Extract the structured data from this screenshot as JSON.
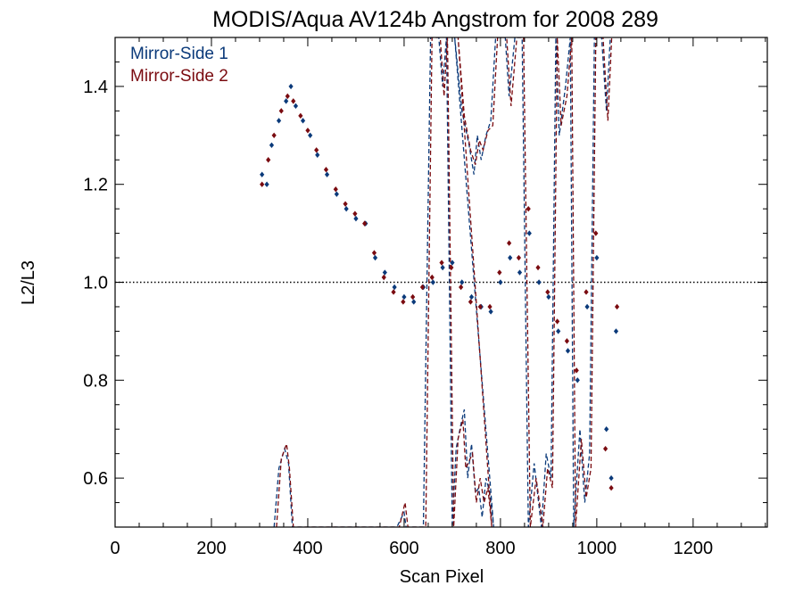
{
  "chart_data": {
    "type": "scatter",
    "title": "MODIS/Aqua AV124b Angstrom for 2008 289",
    "xlabel": "Scan Pixel",
    "ylabel": "L2/L3",
    "xlim": [
      0,
      1354
    ],
    "ylim": [
      0.5,
      1.5
    ],
    "xticks": [
      "0",
      "200",
      "400",
      "600",
      "800",
      "1000",
      "1200"
    ],
    "xtick_values": [
      0,
      200,
      400,
      600,
      800,
      1000,
      1200
    ],
    "yticks": [
      "0.6",
      "0.8",
      "1.0",
      "1.2",
      "1.4"
    ],
    "ytick_values": [
      0.6,
      0.8,
      1.0,
      1.2,
      1.4
    ],
    "reference_line": {
      "y": 1.0,
      "style": "dotted",
      "color": "#000000"
    },
    "legend_position": "top-left",
    "series": [
      {
        "name": "Mirror-Side 1",
        "color": "#0b3a7a",
        "points": [
          [
            305,
            1.22
          ],
          [
            315,
            1.2
          ],
          [
            325,
            1.28
          ],
          [
            340,
            1.33
          ],
          [
            355,
            1.37
          ],
          [
            365,
            1.4
          ],
          [
            375,
            1.36
          ],
          [
            390,
            1.33
          ],
          [
            405,
            1.3
          ],
          [
            420,
            1.26
          ],
          [
            440,
            1.22
          ],
          [
            460,
            1.18
          ],
          [
            480,
            1.15
          ],
          [
            500,
            1.13
          ],
          [
            520,
            1.12
          ],
          [
            540,
            1.05
          ],
          [
            560,
            1.02
          ],
          [
            580,
            0.99
          ],
          [
            600,
            0.97
          ],
          [
            620,
            0.96
          ],
          [
            640,
            0.99
          ],
          [
            660,
            1.0
          ],
          [
            680,
            1.03
          ],
          [
            700,
            1.04
          ],
          [
            720,
            1.0
          ],
          [
            740,
            0.97
          ],
          [
            760,
            0.95
          ],
          [
            780,
            0.94
          ],
          [
            800,
            1.0
          ],
          [
            820,
            1.05
          ],
          [
            840,
            1.02
          ],
          [
            860,
            1.1
          ],
          [
            880,
            1.0
          ],
          [
            900,
            0.97
          ],
          [
            920,
            0.9
          ],
          [
            940,
            0.86
          ],
          [
            960,
            0.8
          ],
          [
            980,
            0.95
          ],
          [
            1000,
            1.05
          ],
          [
            1020,
            0.7
          ],
          [
            1030,
            0.6
          ],
          [
            1040,
            0.9
          ]
        ],
        "line": [
          [
            330,
            0.5
          ],
          [
            340,
            0.62
          ],
          [
            352,
            0.66
          ],
          [
            360,
            0.63
          ],
          [
            368,
            0.5
          ],
          [
            585,
            0.5
          ],
          [
            600,
            0.53
          ],
          [
            604,
            0.5
          ],
          [
            640,
            0.5
          ],
          [
            655,
            1.5
          ],
          [
            672,
            1.5
          ],
          [
            680,
            1.4
          ],
          [
            688,
            1.5
          ],
          [
            700,
            0.5
          ],
          [
            708,
            0.66
          ],
          [
            718,
            0.71
          ],
          [
            725,
            0.74
          ],
          [
            732,
            0.6
          ],
          [
            740,
            0.67
          ],
          [
            748,
            0.57
          ],
          [
            755,
            0.58
          ],
          [
            762,
            0.52
          ],
          [
            770,
            0.6
          ],
          [
            778,
            0.57
          ],
          [
            786,
            0.5
          ],
          [
            705,
            1.5
          ],
          [
            720,
            1.35
          ],
          [
            735,
            1.28
          ],
          [
            745,
            1.22
          ],
          [
            752,
            1.3
          ],
          [
            760,
            1.25
          ],
          [
            770,
            1.3
          ],
          [
            780,
            1.33
          ],
          [
            790,
            1.5
          ],
          [
            810,
            1.5
          ],
          [
            818,
            1.38
          ],
          [
            830,
            1.5
          ],
          [
            845,
            1.5
          ],
          [
            858,
            0.5
          ],
          [
            870,
            0.63
          ],
          [
            885,
            0.5
          ],
          [
            895,
            0.65
          ],
          [
            905,
            0.6
          ],
          [
            915,
            1.5
          ],
          [
            922,
            1.3
          ],
          [
            935,
            1.4
          ],
          [
            945,
            1.5
          ],
          [
            952,
            0.5
          ],
          [
            965,
            0.7
          ],
          [
            975,
            0.55
          ],
          [
            985,
            0.65
          ],
          [
            995,
            1.5
          ],
          [
            1010,
            1.5
          ],
          [
            1020,
            1.35
          ],
          [
            1028,
            1.5
          ]
        ]
      },
      {
        "name": "Mirror-Side 2",
        "color": "#7a0b10",
        "points": [
          [
            305,
            1.2
          ],
          [
            318,
            1.25
          ],
          [
            330,
            1.3
          ],
          [
            345,
            1.35
          ],
          [
            358,
            1.38
          ],
          [
            370,
            1.37
          ],
          [
            385,
            1.34
          ],
          [
            400,
            1.31
          ],
          [
            418,
            1.27
          ],
          [
            438,
            1.23
          ],
          [
            458,
            1.19
          ],
          [
            478,
            1.16
          ],
          [
            498,
            1.14
          ],
          [
            518,
            1.12
          ],
          [
            538,
            1.06
          ],
          [
            558,
            1.01
          ],
          [
            578,
            0.98
          ],
          [
            598,
            0.96
          ],
          [
            618,
            0.97
          ],
          [
            638,
            0.99
          ],
          [
            658,
            1.01
          ],
          [
            678,
            1.04
          ],
          [
            698,
            1.03
          ],
          [
            718,
            0.99
          ],
          [
            738,
            0.96
          ],
          [
            758,
            0.95
          ],
          [
            778,
            0.95
          ],
          [
            798,
            1.02
          ],
          [
            818,
            1.08
          ],
          [
            838,
            1.05
          ],
          [
            858,
            1.15
          ],
          [
            878,
            1.03
          ],
          [
            898,
            0.98
          ],
          [
            918,
            0.92
          ],
          [
            938,
            0.88
          ],
          [
            958,
            0.82
          ],
          [
            978,
            0.98
          ],
          [
            998,
            1.1
          ],
          [
            1018,
            0.66
          ],
          [
            1030,
            0.58
          ],
          [
            1042,
            0.95
          ]
        ],
        "line": [
          [
            335,
            0.5
          ],
          [
            345,
            0.64
          ],
          [
            356,
            0.67
          ],
          [
            362,
            0.62
          ],
          [
            370,
            0.5
          ],
          [
            590,
            0.5
          ],
          [
            602,
            0.55
          ],
          [
            608,
            0.5
          ],
          [
            645,
            0.5
          ],
          [
            658,
            1.5
          ],
          [
            675,
            1.5
          ],
          [
            683,
            1.38
          ],
          [
            690,
            1.5
          ],
          [
            703,
            0.5
          ],
          [
            712,
            0.68
          ],
          [
            722,
            0.72
          ],
          [
            728,
            0.62
          ],
          [
            742,
            0.65
          ],
          [
            750,
            0.55
          ],
          [
            758,
            0.6
          ],
          [
            766,
            0.55
          ],
          [
            774,
            0.58
          ],
          [
            782,
            0.5
          ],
          [
            712,
            1.5
          ],
          [
            725,
            1.34
          ],
          [
            738,
            1.27
          ],
          [
            748,
            1.24
          ],
          [
            756,
            1.29
          ],
          [
            764,
            1.27
          ],
          [
            774,
            1.31
          ],
          [
            784,
            1.32
          ],
          [
            794,
            1.5
          ],
          [
            813,
            1.5
          ],
          [
            822,
            1.36
          ],
          [
            834,
            1.5
          ],
          [
            848,
            1.5
          ],
          [
            862,
            0.5
          ],
          [
            874,
            0.6
          ],
          [
            888,
            0.5
          ],
          [
            898,
            0.62
          ],
          [
            908,
            0.58
          ],
          [
            918,
            1.5
          ],
          [
            926,
            1.32
          ],
          [
            938,
            1.38
          ],
          [
            948,
            1.5
          ],
          [
            956,
            0.5
          ],
          [
            968,
            0.68
          ],
          [
            978,
            0.56
          ],
          [
            988,
            0.62
          ],
          [
            998,
            1.5
          ],
          [
            1013,
            1.5
          ],
          [
            1023,
            1.33
          ],
          [
            1031,
            1.5
          ]
        ]
      }
    ]
  }
}
